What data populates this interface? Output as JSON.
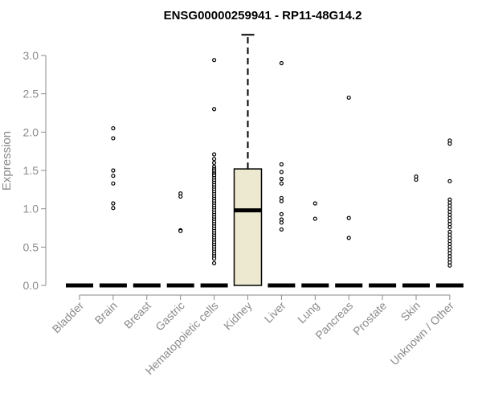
{
  "chart_data": {
    "type": "boxplot",
    "title": "ENSG00000259941 - RP11-48G14.2",
    "ylabel": "Expression",
    "xlabel": "",
    "ylim": [
      0,
      3.3
    ],
    "yticks": [
      0.0,
      0.5,
      1.0,
      1.5,
      2.0,
      2.5,
      3.0
    ],
    "ytick_labels": [
      "0.0",
      "0.5",
      "1.0",
      "1.5",
      "2.0",
      "2.5",
      "3.0"
    ],
    "box_fill": "#ede8d0",
    "categories": [
      "Bladder",
      "Brain",
      "Breast",
      "Gastric",
      "Hematopoietic cells",
      "Kidney",
      "Liver",
      "Lung",
      "Pancreas",
      "Prostate",
      "Skin",
      "Unknown / Other"
    ],
    "boxes": [
      {
        "category": "Bladder",
        "q1": 0,
        "median": 0,
        "q3": 0,
        "whisker_low": 0,
        "whisker_high": 0,
        "outliers": []
      },
      {
        "category": "Brain",
        "q1": 0,
        "median": 0,
        "q3": 0,
        "whisker_low": 0,
        "whisker_high": 0,
        "outliers": [
          2.05,
          1.92,
          1.5,
          1.43,
          1.33,
          1.07,
          1.01
        ]
      },
      {
        "category": "Breast",
        "q1": 0,
        "median": 0,
        "q3": 0,
        "whisker_low": 0,
        "whisker_high": 0,
        "outliers": []
      },
      {
        "category": "Gastric",
        "q1": 0,
        "median": 0,
        "q3": 0,
        "whisker_low": 0,
        "whisker_high": 0,
        "outliers": [
          1.2,
          1.16,
          0.72,
          0.71
        ]
      },
      {
        "category": "Hematopoietic cells",
        "q1": 0,
        "median": 0,
        "q3": 0,
        "whisker_low": 0,
        "whisker_high": 0,
        "outliers": [
          2.94,
          2.3,
          1.71,
          1.65,
          1.6,
          1.55,
          1.52,
          1.5,
          1.47,
          1.45,
          1.43,
          1.4,
          1.37,
          1.34,
          1.31,
          1.28,
          1.25,
          1.22,
          1.19,
          1.16,
          1.13,
          1.1,
          1.07,
          1.04,
          1.01,
          0.98,
          0.95,
          0.92,
          0.89,
          0.86,
          0.83,
          0.8,
          0.77,
          0.74,
          0.71,
          0.68,
          0.65,
          0.62,
          0.59,
          0.56,
          0.53,
          0.5,
          0.47,
          0.44,
          0.41,
          0.38,
          0.35,
          0.29
        ]
      },
      {
        "category": "Kidney",
        "q1": 0,
        "median": 0.98,
        "q3": 1.52,
        "whisker_low": 0,
        "whisker_high": 3.27,
        "outliers": []
      },
      {
        "category": "Liver",
        "q1": 0,
        "median": 0,
        "q3": 0,
        "whisker_low": 0,
        "whisker_high": 0,
        "outliers": [
          2.9,
          1.58,
          1.48,
          1.39,
          1.33,
          1.14,
          1.1,
          0.93,
          0.86,
          0.82,
          0.73
        ]
      },
      {
        "category": "Lung",
        "q1": 0,
        "median": 0,
        "q3": 0,
        "whisker_low": 0,
        "whisker_high": 0,
        "outliers": [
          1.07,
          0.87
        ]
      },
      {
        "category": "Pancreas",
        "q1": 0,
        "median": 0,
        "q3": 0,
        "whisker_low": 0,
        "whisker_high": 0,
        "outliers": [
          2.45,
          0.88,
          0.62
        ]
      },
      {
        "category": "Prostate",
        "q1": 0,
        "median": 0,
        "q3": 0,
        "whisker_low": 0,
        "whisker_high": 0,
        "outliers": []
      },
      {
        "category": "Skin",
        "q1": 0,
        "median": 0,
        "q3": 0,
        "whisker_low": 0,
        "whisker_high": 0,
        "outliers": [
          1.42,
          1.38
        ]
      },
      {
        "category": "Unknown / Other",
        "q1": 0,
        "median": 0,
        "q3": 0,
        "whisker_low": 0,
        "whisker_high": 0,
        "outliers": [
          1.89,
          1.85,
          1.36,
          1.12,
          1.08,
          1.04,
          1.0,
          0.96,
          0.92,
          0.88,
          0.84,
          0.8,
          0.76,
          0.7,
          0.66,
          0.62,
          0.58,
          0.54,
          0.5,
          0.46,
          0.42,
          0.38,
          0.34,
          0.3,
          0.26
        ]
      }
    ]
  }
}
